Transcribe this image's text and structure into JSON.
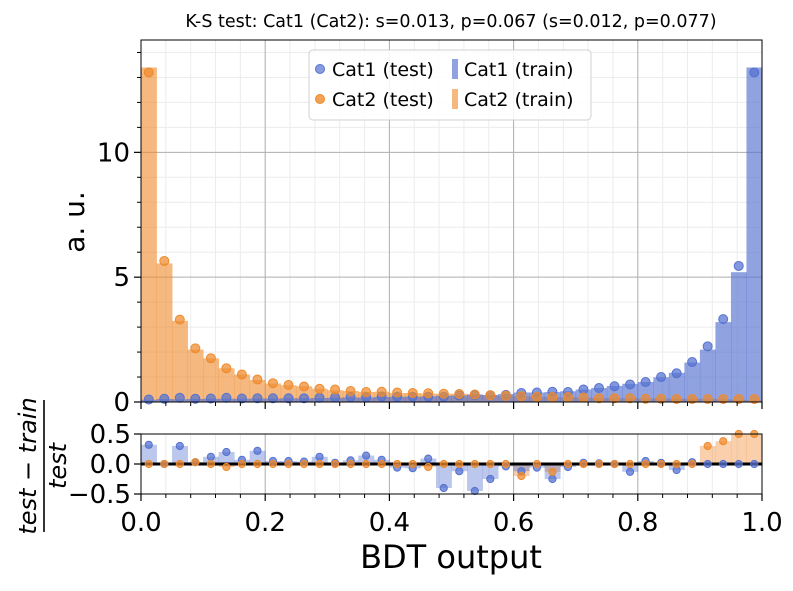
{
  "chart_data": [
    {
      "type": "bar",
      "title": "K-S test: Cat1 (Cat2): s=0.013, p=0.067 (s=0.012, p=0.077)",
      "xlabel": "BDT output",
      "ylabel": "a. u.",
      "xlim": [
        0,
        1
      ],
      "ylim": [
        0,
        14.5
      ],
      "yticks": [
        "0",
        "5",
        "10"
      ],
      "grid": true,
      "legend_position": "top-center",
      "bins": 40,
      "colors": {
        "cat1": "#5572d0",
        "cat2": "#ef8a2c"
      },
      "series": [
        {
          "name": "Cat1 (train)",
          "kind": "histogram",
          "color": "#5572d0",
          "values": [
            0.09,
            0.12,
            0.11,
            0.12,
            0.13,
            0.13,
            0.13,
            0.14,
            0.14,
            0.15,
            0.15,
            0.16,
            0.17,
            0.18,
            0.18,
            0.2,
            0.21,
            0.21,
            0.22,
            0.25,
            0.26,
            0.3,
            0.28,
            0.32,
            0.38,
            0.38,
            0.4,
            0.43,
            0.5,
            0.56,
            0.64,
            0.73,
            0.8,
            0.99,
            1.17,
            1.58,
            2.1,
            3.2,
            5.2,
            13.4
          ]
        },
        {
          "name": "Cat2 (train)",
          "kind": "histogram",
          "color": "#ef8a2c",
          "values": [
            13.4,
            5.55,
            3.25,
            2.1,
            1.75,
            1.35,
            1.1,
            0.88,
            0.74,
            0.67,
            0.63,
            0.53,
            0.47,
            0.44,
            0.4,
            0.41,
            0.36,
            0.36,
            0.34,
            0.33,
            0.33,
            0.3,
            0.27,
            0.24,
            0.23,
            0.21,
            0.2,
            0.19,
            0.18,
            0.16,
            0.15,
            0.16,
            0.14,
            0.14,
            0.13,
            0.13,
            0.13,
            0.11,
            0.09,
            0.07
          ]
        },
        {
          "name": "Cat1 (test)",
          "kind": "points",
          "color": "#5572d0",
          "values": [
            0.1,
            0.13,
            0.17,
            0.13,
            0.14,
            0.17,
            0.14,
            0.15,
            0.15,
            0.15,
            0.15,
            0.17,
            0.18,
            0.2,
            0.19,
            0.22,
            0.21,
            0.21,
            0.21,
            0.21,
            0.26,
            0.27,
            0.27,
            0.28,
            0.36,
            0.38,
            0.41,
            0.4,
            0.5,
            0.56,
            0.63,
            0.7,
            0.8,
            1.0,
            1.15,
            1.6,
            2.23,
            3.32,
            5.45,
            13.2
          ]
        },
        {
          "name": "Cat2 (test)",
          "kind": "points",
          "color": "#ef8a2c",
          "values": [
            13.2,
            5.65,
            3.3,
            2.15,
            1.75,
            1.35,
            1.1,
            0.9,
            0.75,
            0.68,
            0.62,
            0.53,
            0.5,
            0.44,
            0.4,
            0.41,
            0.38,
            0.36,
            0.35,
            0.33,
            0.32,
            0.3,
            0.27,
            0.25,
            0.23,
            0.21,
            0.2,
            0.2,
            0.18,
            0.15,
            0.15,
            0.15,
            0.13,
            0.13,
            0.12,
            0.12,
            0.12,
            0.12,
            0.12,
            0.12
          ]
        }
      ]
    },
    {
      "type": "bar",
      "xlabel": "BDT output",
      "ylabel": "(test − train) / test",
      "ylabel_numerator": "test − train",
      "ylabel_denominator": "test",
      "xlim": [
        0,
        1
      ],
      "ylim": [
        -0.5,
        0.5
      ],
      "xticks": [
        "0.0",
        "0.2",
        "0.4",
        "0.6",
        "0.8",
        "1.0"
      ],
      "yticks": [
        "−0.5",
        "0.0",
        "0.5"
      ],
      "grid": true,
      "series": [
        {
          "name": "Cat1",
          "color": "#5572d0",
          "values": [
            0.32,
            0.0,
            0.3,
            0.03,
            0.12,
            0.2,
            0.07,
            0.22,
            0.05,
            0.05,
            0.04,
            0.12,
            0.02,
            0.06,
            0.14,
            0.07,
            -0.06,
            -0.07,
            0.09,
            -0.4,
            -0.12,
            -0.45,
            -0.25,
            -0.04,
            -0.12,
            -0.06,
            -0.25,
            -0.05,
            0.02,
            0.01,
            0.0,
            -0.13,
            0.05,
            0.02,
            -0.1,
            0.03,
            0.0,
            0.0,
            0.0,
            0.0
          ]
        },
        {
          "name": "Cat2",
          "color": "#ef8a2c",
          "values": [
            0.0,
            0.0,
            0.0,
            0.03,
            0.0,
            -0.05,
            0.0,
            0.0,
            0.0,
            0.0,
            0.0,
            0.0,
            0.0,
            0.0,
            0.0,
            0.0,
            0.0,
            0.0,
            -0.05,
            0.0,
            0.0,
            0.0,
            0.0,
            0.0,
            -0.2,
            0.0,
            -0.13,
            0.0,
            0.0,
            0.0,
            0.0,
            0.0,
            0.0,
            0.0,
            0.0,
            0.0,
            0.3,
            0.38,
            0.5,
            0.5
          ]
        }
      ]
    }
  ]
}
